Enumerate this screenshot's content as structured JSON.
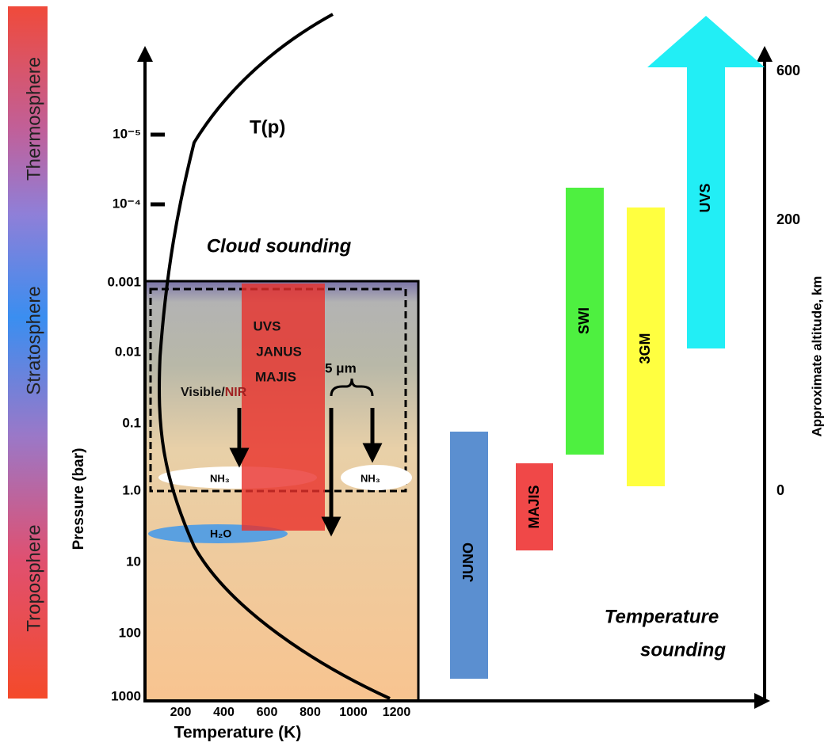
{
  "layers": [
    "Thermosphere",
    "Stratosphere",
    "Troposphere"
  ],
  "pressure_axis": {
    "label": "Pressure (bar)",
    "ticks": [
      "10⁻⁵",
      "10⁻⁴",
      "0.001",
      "0.01",
      "0.1",
      "1.0",
      "10",
      "100",
      "1000"
    ]
  },
  "temperature_axis": {
    "label": "Temperature (K)",
    "ticks": [
      "200",
      "400",
      "600",
      "800",
      "1000",
      "1200"
    ]
  },
  "altitude_axis": {
    "label": "Approximate altitude, km",
    "ticks": [
      "600",
      "200",
      "0"
    ]
  },
  "curve_label": "T(p)",
  "cloud_sounding": {
    "title": "Cloud sounding",
    "instruments": [
      "UVS",
      "JANUS",
      "MAJIS"
    ],
    "visible": "Visible/",
    "nir": "NIR",
    "band": "5 μm",
    "clouds": [
      "NH₃",
      "NH₃",
      "H₂O"
    ]
  },
  "temperature_sounding": {
    "title_lines": [
      "Temperature",
      "sounding"
    ],
    "instruments": [
      "JUNO",
      "MAJIS",
      "SWI",
      "3GM",
      "UVS"
    ]
  }
}
